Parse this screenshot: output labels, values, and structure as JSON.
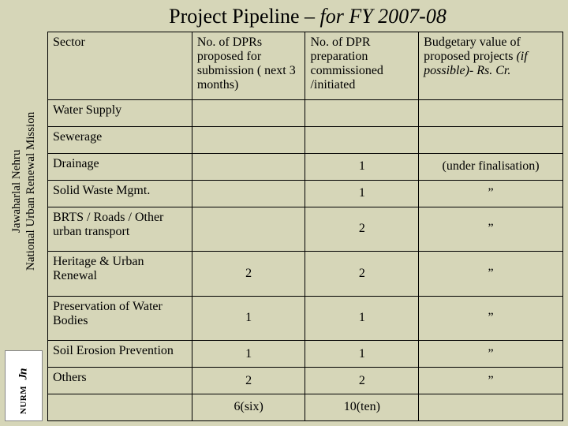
{
  "title_plain": "Project Pipeline – ",
  "title_italic": "for FY 2007-08",
  "sidebar": {
    "line1": "Jawaharlal Nehru",
    "line2": "National Urban Renewal Mission",
    "logo_jn": "Jn",
    "logo_nurm": "NURM"
  },
  "table": {
    "headers": {
      "sector": "Sector",
      "col2": "No. of DPRs proposed for submission ( next 3 months)",
      "col3": "No. of DPR preparation commissioned /initiated",
      "col4_a": "Budgetary value of proposed  projects ",
      "col4_b": "(if possible)- Rs. Cr."
    },
    "rows": [
      {
        "sector": "Water Supply",
        "c2": "",
        "c3": "",
        "c4": ""
      },
      {
        "sector": "Sewerage",
        "c2": "",
        "c3": "",
        "c4": ""
      },
      {
        "sector": "Drainage",
        "c2": "",
        "c3": "1",
        "c4": "(under finalisation)"
      },
      {
        "sector": "Solid Waste Mgmt.",
        "c2": "",
        "c3": "1",
        "c4": "”"
      },
      {
        "sector": "BRTS / Roads / Other urban transport",
        "c2": "",
        "c3": "2",
        "c4": "”"
      },
      {
        "sector": "Heritage & Urban Renewal",
        "c2": "2",
        "c3": "2",
        "c4": "”"
      },
      {
        "sector": "Preservation of Water Bodies",
        "c2": "1",
        "c3": "1",
        "c4": "”"
      },
      {
        "sector": "Soil Erosion Prevention",
        "c2": "1",
        "c3": "1",
        "c4": "”"
      },
      {
        "sector": "Others",
        "c2": "2",
        "c3": "2",
        "c4": "”"
      }
    ],
    "totals": {
      "c2": "6(six)",
      "c3": "10(ten)"
    }
  }
}
